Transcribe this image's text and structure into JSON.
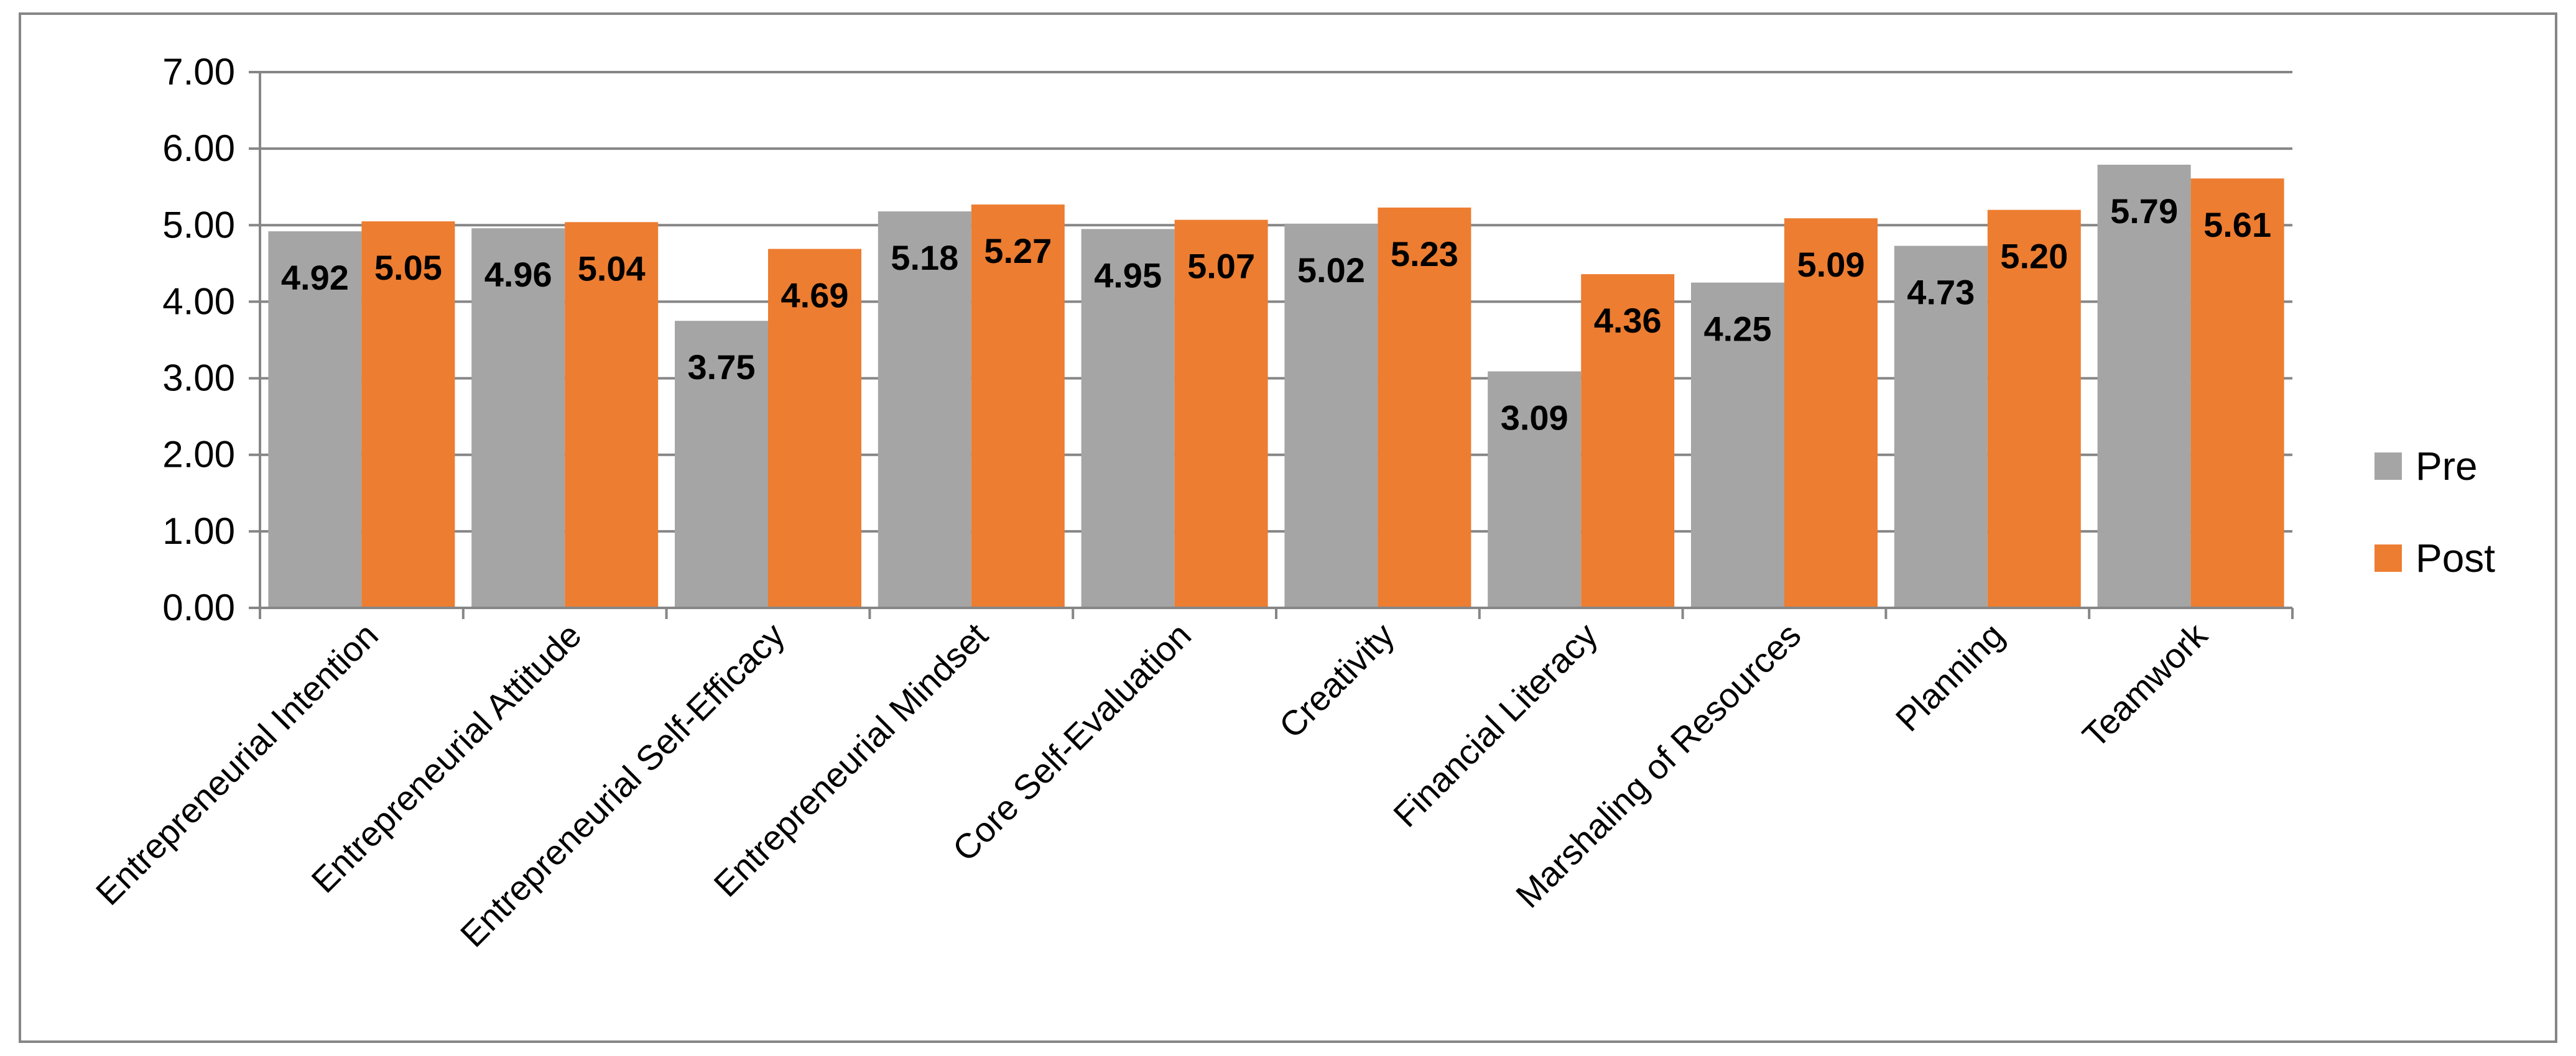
{
  "chart_data": {
    "type": "bar",
    "title": "",
    "xlabel": "",
    "ylabel": "",
    "ylim": [
      0,
      7
    ],
    "yticks": [
      "0.00",
      "1.00",
      "2.00",
      "3.00",
      "4.00",
      "5.00",
      "6.00",
      "7.00"
    ],
    "grid": true,
    "legend_position": "right",
    "categories": [
      "Entrepreneurial Intention",
      "Entrepreneurial Attitude",
      "Entrepreneurial Self-Efficacy",
      "Entrepreneurial Mindset",
      "Core Self-Evaluation",
      "Creativity",
      "Financial Literacy",
      "Marshaling of Resources",
      "Planning",
      "Teamwork"
    ],
    "series": [
      {
        "name": "Pre",
        "color": "#a5a5a5",
        "values": [
          4.92,
          4.96,
          3.75,
          5.18,
          4.95,
          5.02,
          3.09,
          4.25,
          4.73,
          5.79
        ],
        "labels": [
          "4.92",
          "4.96",
          "3.75",
          "5.18",
          "4.95",
          "5.02",
          "3.09",
          "4.25",
          "4.73",
          "5.79"
        ]
      },
      {
        "name": "Post",
        "color": "#ed7d31",
        "values": [
          5.05,
          5.04,
          4.69,
          5.27,
          5.07,
          5.23,
          4.36,
          5.09,
          5.2,
          5.61
        ],
        "labels": [
          "5.05",
          "5.04",
          "4.69",
          "5.27",
          "5.07",
          "5.23",
          "4.36",
          "5.09",
          "5.20",
          "5.61"
        ]
      }
    ]
  }
}
